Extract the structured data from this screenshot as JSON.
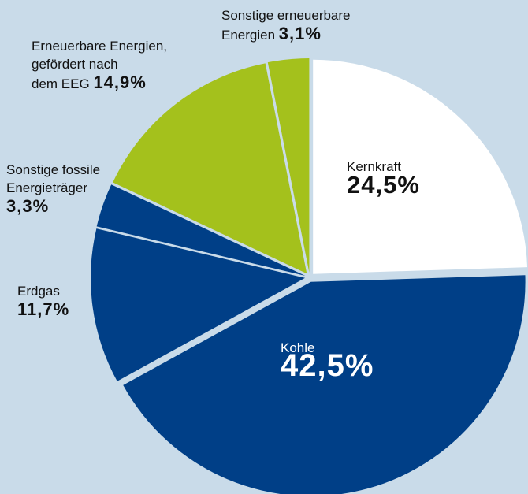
{
  "chart_data": {
    "type": "pie",
    "categories": [
      "Kernkraft",
      "Kohle",
      "Erdgas",
      "Sonstige fossile Energieträger",
      "Erneuerbare Energien, gefördert nach dem EEG",
      "Sonstige erneuerbare Energien"
    ],
    "values": [
      24.5,
      42.5,
      11.7,
      3.3,
      14.9,
      3.1
    ],
    "value_labels": [
      "24,5%",
      "42,5%",
      "11,7%",
      "3,3%",
      "14,9%",
      "3,1%"
    ],
    "colors": [
      "#ffffff",
      "#003f87",
      "#003f87",
      "#003f87",
      "#a4c11c",
      "#a4c11c"
    ]
  }
}
